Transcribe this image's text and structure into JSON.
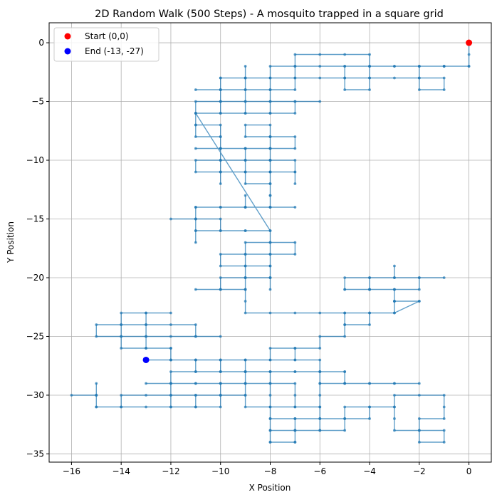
{
  "chart_data": {
    "type": "line",
    "title": "2D Random Walk (500 Steps) - A mosquito trapped in a square grid",
    "xlabel": "X Position",
    "ylabel": "Y Position",
    "xlim": [
      -16.9,
      0.9
    ],
    "ylim": [
      -35.7,
      1.7
    ],
    "xticks": [
      -16,
      -14,
      -12,
      -10,
      -8,
      -6,
      -4,
      -2,
      0
    ],
    "yticks": [
      -35,
      -30,
      -25,
      -20,
      -15,
      -10,
      -5,
      0
    ],
    "xtick_labels": [
      "−16",
      "−14",
      "−12",
      "−10",
      "−8",
      "−6",
      "−4",
      "−2",
      "0"
    ],
    "ytick_labels": [
      "−35",
      "−30",
      "−25",
      "−20",
      "−15",
      "−10",
      "−5",
      "0"
    ],
    "grid": true,
    "legend_position": "top-left",
    "legend": [
      {
        "label": "Start (0,0)",
        "color": "#ff0000"
      },
      {
        "label": "End (-13, -27)",
        "color": "#0000ff"
      }
    ],
    "colors": {
      "path": "#1f77b4",
      "start": "#ff0000",
      "end": "#0000ff"
    },
    "start": [
      0,
      0
    ],
    "end": [
      -13,
      -27
    ],
    "path": [
      [
        0,
        0
      ],
      [
        0,
        -1
      ],
      [
        0,
        -2
      ],
      [
        -1,
        -2
      ],
      [
        -2,
        -2
      ],
      [
        -3,
        -2
      ],
      [
        -4,
        -2
      ],
      [
        -4,
        -1
      ],
      [
        -5,
        -1
      ],
      [
        -6,
        -1
      ],
      [
        -7,
        -1
      ],
      [
        -7,
        -2
      ],
      [
        -7,
        -3
      ],
      [
        -8,
        -3
      ],
      [
        -9,
        -3
      ],
      [
        -10,
        -3
      ],
      [
        -10,
        -4
      ],
      [
        -11,
        -4
      ],
      [
        -10,
        -4
      ],
      [
        -10,
        -5
      ],
      [
        -9,
        -5
      ],
      [
        -8,
        -5
      ],
      [
        -7,
        -5
      ],
      [
        -6,
        -5
      ],
      [
        -7,
        -5
      ],
      [
        -7,
        -6
      ],
      [
        -8,
        -6
      ],
      [
        -9,
        -6
      ],
      [
        -9,
        -5
      ],
      [
        -9,
        -4
      ],
      [
        -8,
        -4
      ],
      [
        -7,
        -4
      ],
      [
        -7,
        -3
      ],
      [
        -6,
        -3
      ],
      [
        -5,
        -3
      ],
      [
        -5,
        -2
      ],
      [
        -4,
        -2
      ],
      [
        -4,
        -3
      ],
      [
        -4,
        -4
      ],
      [
        -5,
        -4
      ],
      [
        -5,
        -3
      ],
      [
        -4,
        -3
      ],
      [
        -3,
        -3
      ],
      [
        -2,
        -3
      ],
      [
        -1,
        -3
      ],
      [
        -1,
        -4
      ],
      [
        -2,
        -4
      ],
      [
        -2,
        -3
      ],
      [
        -2,
        -2
      ],
      [
        -1,
        -2
      ],
      [
        0,
        -2
      ],
      [
        -1,
        -2
      ],
      [
        -2,
        -2
      ],
      [
        -3,
        -2
      ],
      [
        -4,
        -2
      ],
      [
        -5,
        -2
      ],
      [
        -6,
        -2
      ],
      [
        -7,
        -2
      ],
      [
        -8,
        -2
      ],
      [
        -8,
        -3
      ],
      [
        -8,
        -4
      ],
      [
        -8,
        -5
      ],
      [
        -8,
        -6
      ],
      [
        -9,
        -6
      ],
      [
        -10,
        -6
      ],
      [
        -10,
        -5
      ],
      [
        -10,
        -4
      ],
      [
        -9,
        -4
      ],
      [
        -9,
        -3
      ],
      [
        -9,
        -2
      ],
      [
        -9,
        -3
      ],
      [
        -10,
        -3
      ],
      [
        -10,
        -5
      ],
      [
        -11,
        -5
      ],
      [
        -11,
        -6
      ],
      [
        -10,
        -6
      ],
      [
        -11,
        -6
      ],
      [
        -11,
        -7
      ],
      [
        -11,
        -8
      ],
      [
        -10,
        -8
      ],
      [
        -10,
        -9
      ],
      [
        -9,
        -9
      ],
      [
        -8,
        -9
      ],
      [
        -8,
        -8
      ],
      [
        -7,
        -8
      ],
      [
        -7,
        -9
      ],
      [
        -8,
        -9
      ],
      [
        -8,
        -8
      ],
      [
        -9,
        -8
      ],
      [
        -9,
        -7
      ],
      [
        -8,
        -7
      ],
      [
        -8,
        -8
      ],
      [
        -8,
        -9
      ],
      [
        -8,
        -10
      ],
      [
        -9,
        -10
      ],
      [
        -10,
        -10
      ],
      [
        -10,
        -9
      ],
      [
        -11,
        -9
      ],
      [
        -10,
        -9
      ],
      [
        -10,
        -10
      ],
      [
        -11,
        -10
      ],
      [
        -11,
        -11
      ],
      [
        -10,
        -11
      ],
      [
        -10,
        -10
      ],
      [
        -9,
        -10
      ],
      [
        -9,
        -11
      ],
      [
        -8,
        -11
      ],
      [
        -8,
        -10
      ],
      [
        -8,
        -11
      ],
      [
        -8,
        -12
      ],
      [
        -8,
        -13
      ],
      [
        -8,
        -14
      ],
      [
        -9,
        -14
      ],
      [
        -9,
        -13
      ],
      [
        -9,
        -14
      ],
      [
        -10,
        -14
      ],
      [
        -11,
        -14
      ],
      [
        -11,
        -15
      ],
      [
        -10,
        -15
      ],
      [
        -10,
        -16
      ],
      [
        -9,
        -16
      ],
      [
        -8,
        -16
      ],
      [
        -9,
        -16
      ],
      [
        -10,
        -16
      ],
      [
        -11,
        -16
      ],
      [
        -11,
        -17
      ],
      [
        -11,
        -16
      ],
      [
        -11,
        -15
      ],
      [
        -12,
        -15
      ],
      [
        -11,
        -15
      ],
      [
        -11,
        -14
      ],
      [
        -10,
        -14
      ],
      [
        -9,
        -14
      ],
      [
        -8,
        -14
      ],
      [
        -7,
        -14
      ],
      [
        -8,
        -14
      ],
      [
        -8,
        -13
      ],
      [
        -8,
        -12
      ],
      [
        -9,
        -12
      ],
      [
        -9,
        -11
      ],
      [
        -10,
        -11
      ],
      [
        -10,
        -12
      ],
      [
        -10,
        -11
      ],
      [
        -9,
        -11
      ],
      [
        -8,
        -11
      ],
      [
        -8,
        -10
      ],
      [
        -7,
        -10
      ],
      [
        -7,
        -11
      ],
      [
        -7,
        -12
      ],
      [
        -7,
        -11
      ],
      [
        -8,
        -11
      ],
      [
        -8,
        -10
      ],
      [
        -8,
        -9
      ],
      [
        -9,
        -9
      ],
      [
        -9,
        -10
      ],
      [
        -9,
        -9
      ],
      [
        -10,
        -9
      ],
      [
        -10,
        -8
      ],
      [
        -10,
        -7
      ],
      [
        -11,
        -7
      ],
      [
        -11,
        -6
      ],
      [
        -8,
        -16
      ],
      [
        -8,
        -17
      ],
      [
        -7,
        -17
      ],
      [
        -7,
        -18
      ],
      [
        -8,
        -18
      ],
      [
        -9,
        -18
      ],
      [
        -10,
        -18
      ],
      [
        -10,
        -19
      ],
      [
        -9,
        -19
      ],
      [
        -9,
        -18
      ],
      [
        -9,
        -17
      ],
      [
        -8,
        -17
      ],
      [
        -8,
        -18
      ],
      [
        -8,
        -19
      ],
      [
        -8,
        -20
      ],
      [
        -8,
        -19
      ],
      [
        -9,
        -19
      ],
      [
        -9,
        -20
      ],
      [
        -10,
        -20
      ],
      [
        -10,
        -21
      ],
      [
        -11,
        -21
      ],
      [
        -10,
        -21
      ],
      [
        -9,
        -21
      ],
      [
        -9,
        -20
      ],
      [
        -8,
        -20
      ],
      [
        -8,
        -21
      ],
      [
        -8,
        -20
      ],
      [
        -9,
        -20
      ],
      [
        -9,
        -21
      ],
      [
        -10,
        -21
      ],
      [
        -9,
        -21
      ],
      [
        -9,
        -22
      ],
      [
        -9,
        -23
      ],
      [
        -8,
        -23
      ],
      [
        -7,
        -23
      ],
      [
        -6,
        -23
      ],
      [
        -5,
        -23
      ],
      [
        -4,
        -23
      ],
      [
        -3,
        -23
      ],
      [
        -3,
        -22
      ],
      [
        -2,
        -22
      ],
      [
        -3,
        -22
      ],
      [
        -3,
        -21
      ],
      [
        -2,
        -21
      ],
      [
        -2,
        -20
      ],
      [
        -1,
        -20
      ],
      [
        -2,
        -20
      ],
      [
        -3,
        -20
      ],
      [
        -3,
        -19
      ],
      [
        -3,
        -20
      ],
      [
        -4,
        -20
      ],
      [
        -5,
        -20
      ],
      [
        -5,
        -21
      ],
      [
        -4,
        -21
      ],
      [
        -3,
        -21
      ],
      [
        -4,
        -21
      ],
      [
        -4,
        -20
      ],
      [
        -4,
        -21
      ],
      [
        -5,
        -21
      ],
      [
        -4,
        -21
      ],
      [
        -3,
        -21
      ],
      [
        -3,
        -22
      ],
      [
        -2,
        -22
      ],
      [
        -3,
        -23
      ],
      [
        -4,
        -23
      ],
      [
        -4,
        -24
      ],
      [
        -5,
        -24
      ],
      [
        -5,
        -23
      ],
      [
        -5,
        -24
      ],
      [
        -5,
        -25
      ],
      [
        -6,
        -25
      ],
      [
        -6,
        -26
      ],
      [
        -7,
        -26
      ],
      [
        -7,
        -27
      ],
      [
        -8,
        -27
      ],
      [
        -8,
        -26
      ],
      [
        -7,
        -26
      ],
      [
        -7,
        -27
      ],
      [
        -6,
        -27
      ],
      [
        -6,
        -28
      ],
      [
        -5,
        -28
      ],
      [
        -5,
        -29
      ],
      [
        -4,
        -29
      ],
      [
        -3,
        -29
      ],
      [
        -2,
        -29
      ],
      [
        -3,
        -29
      ],
      [
        -4,
        -29
      ],
      [
        -5,
        -29
      ],
      [
        -6,
        -29
      ],
      [
        -6,
        -30
      ],
      [
        -6,
        -31
      ],
      [
        -7,
        -31
      ],
      [
        -7,
        -30
      ],
      [
        -7,
        -29
      ],
      [
        -8,
        -29
      ],
      [
        -8,
        -28
      ],
      [
        -9,
        -28
      ],
      [
        -9,
        -27
      ],
      [
        -10,
        -27
      ],
      [
        -10,
        -28
      ],
      [
        -11,
        -28
      ],
      [
        -12,
        -28
      ],
      [
        -12,
        -29
      ],
      [
        -12,
        -30
      ],
      [
        -12,
        -31
      ],
      [
        -11,
        -31
      ],
      [
        -11,
        -30
      ],
      [
        -10,
        -30
      ],
      [
        -10,
        -29
      ],
      [
        -11,
        -29
      ],
      [
        -12,
        -29
      ],
      [
        -13,
        -29
      ],
      [
        -12,
        -29
      ],
      [
        -11,
        -29
      ],
      [
        -10,
        -29
      ],
      [
        -9,
        -29
      ],
      [
        -8,
        -29
      ],
      [
        -8,
        -30
      ],
      [
        -8,
        -31
      ],
      [
        -8,
        -32
      ],
      [
        -7,
        -32
      ],
      [
        -6,
        -32
      ],
      [
        -5,
        -32
      ],
      [
        -4,
        -32
      ],
      [
        -4,
        -31
      ],
      [
        -3,
        -31
      ],
      [
        -3,
        -32
      ],
      [
        -3,
        -33
      ],
      [
        -2,
        -33
      ],
      [
        -1,
        -33
      ],
      [
        -1,
        -34
      ],
      [
        -2,
        -34
      ],
      [
        -2,
        -33
      ],
      [
        -2,
        -32
      ],
      [
        -1,
        -32
      ],
      [
        -1,
        -31
      ],
      [
        -1,
        -30
      ],
      [
        -2,
        -30
      ],
      [
        -3,
        -30
      ],
      [
        -3,
        -31
      ],
      [
        -4,
        -31
      ],
      [
        -5,
        -31
      ],
      [
        -5,
        -32
      ],
      [
        -5,
        -33
      ],
      [
        -6,
        -33
      ],
      [
        -7,
        -33
      ],
      [
        -7,
        -34
      ],
      [
        -8,
        -34
      ],
      [
        -8,
        -33
      ],
      [
        -7,
        -33
      ],
      [
        -7,
        -32
      ],
      [
        -8,
        -32
      ],
      [
        -8,
        -33
      ],
      [
        -8,
        -34
      ],
      [
        -7,
        -34
      ],
      [
        -7,
        -33
      ],
      [
        -6,
        -33
      ],
      [
        -6,
        -32
      ],
      [
        -6,
        -31
      ],
      [
        -7,
        -31
      ],
      [
        -8,
        -31
      ],
      [
        -9,
        -31
      ],
      [
        -9,
        -30
      ],
      [
        -9,
        -29
      ],
      [
        -10,
        -29
      ],
      [
        -10,
        -30
      ],
      [
        -11,
        -30
      ],
      [
        -12,
        -30
      ],
      [
        -13,
        -30
      ],
      [
        -14,
        -30
      ],
      [
        -14,
        -31
      ],
      [
        -15,
        -31
      ],
      [
        -15,
        -30
      ],
      [
        -16,
        -30
      ],
      [
        -15,
        -30
      ],
      [
        -15,
        -29
      ],
      [
        -15,
        -30
      ],
      [
        -15,
        -31
      ],
      [
        -14,
        -31
      ],
      [
        -13,
        -31
      ],
      [
        -12,
        -31
      ],
      [
        -11,
        -31
      ],
      [
        -10,
        -31
      ],
      [
        -10,
        -30
      ],
      [
        -9,
        -30
      ],
      [
        -9,
        -29
      ],
      [
        -9,
        -28
      ],
      [
        -8,
        -28
      ],
      [
        -7,
        -28
      ],
      [
        -6,
        -28
      ],
      [
        -5,
        -28
      ],
      [
        -5,
        -29
      ],
      [
        -6,
        -29
      ],
      [
        -6,
        -28
      ],
      [
        -7,
        -28
      ],
      [
        -8,
        -28
      ],
      [
        -9,
        -28
      ],
      [
        -10,
        -28
      ],
      [
        -11,
        -28
      ],
      [
        -11,
        -27
      ],
      [
        -12,
        -27
      ],
      [
        -12,
        -26
      ],
      [
        -13,
        -26
      ],
      [
        -14,
        -26
      ],
      [
        -14,
        -25
      ],
      [
        -15,
        -25
      ],
      [
        -15,
        -24
      ],
      [
        -14,
        -24
      ],
      [
        -14,
        -23
      ],
      [
        -13,
        -23
      ],
      [
        -12,
        -23
      ],
      [
        -13,
        -23
      ],
      [
        -13,
        -24
      ],
      [
        -14,
        -24
      ],
      [
        -14,
        -25
      ],
      [
        -13,
        -25
      ],
      [
        -12,
        -25
      ],
      [
        -11,
        -25
      ],
      [
        -10,
        -25
      ],
      [
        -11,
        -25
      ],
      [
        -11,
        -24
      ],
      [
        -12,
        -24
      ],
      [
        -13,
        -24
      ],
      [
        -13,
        -25
      ],
      [
        -13,
        -26
      ],
      [
        -12,
        -26
      ],
      [
        -12,
        -27
      ],
      [
        -11,
        -27
      ],
      [
        -10,
        -27
      ],
      [
        -9,
        -27
      ],
      [
        -8,
        -27
      ],
      [
        -9,
        -27
      ],
      [
        -9,
        -28
      ],
      [
        -10,
        -28
      ],
      [
        -10,
        -27
      ],
      [
        -11,
        -27
      ],
      [
        -12,
        -27
      ],
      [
        -13,
        -27
      ]
    ]
  }
}
